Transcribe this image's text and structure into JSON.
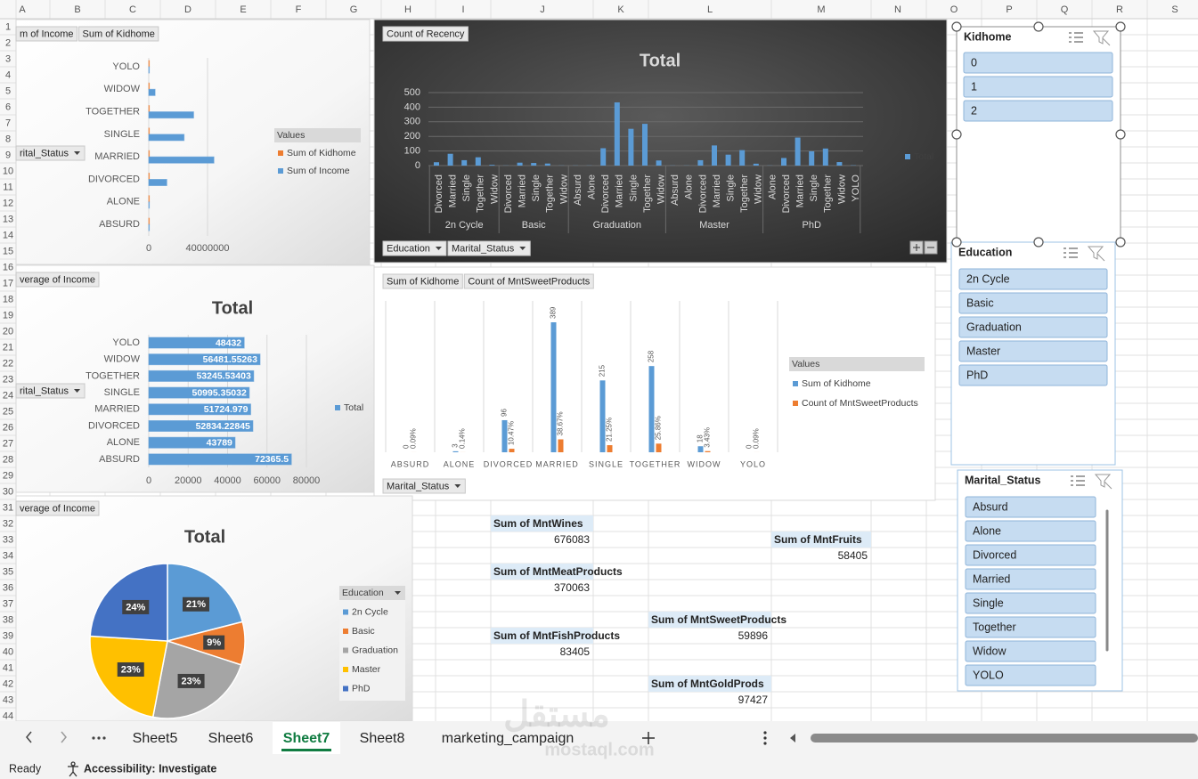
{
  "sheet": {
    "columns": [
      "A",
      "B",
      "C",
      "D",
      "E",
      "F",
      "G",
      "H",
      "I",
      "J",
      "K",
      "L",
      "M",
      "N",
      "O",
      "P",
      "Q",
      "R",
      "S"
    ],
    "rows": [
      1,
      2,
      3,
      4,
      5,
      6,
      7,
      8,
      9,
      10,
      11,
      12,
      13,
      14,
      15,
      16,
      17,
      18,
      19,
      20,
      21,
      22,
      23,
      24,
      25,
      26,
      27,
      28,
      29,
      30,
      31,
      32,
      33,
      34,
      35,
      36,
      37,
      38,
      39,
      40,
      41,
      42,
      43,
      44
    ]
  },
  "chart_data": [
    {
      "type": "bar",
      "orientation": "horizontal",
      "field_buttons": [
        "m of Income",
        "Sum of Kidhome"
      ],
      "axis_buttons": [
        "rital_Status"
      ],
      "legend_title": "Values",
      "categories": [
        "YOLO",
        "WIDOW",
        "TOGETHER",
        "SINGLE",
        "MARRIED",
        "DIVORCED",
        "ALONE",
        "ABSURD"
      ],
      "series": [
        {
          "name": "Sum of Kidhome",
          "color": "#ed7d31",
          "values": [
            0,
            18,
            258,
            215,
            389,
            96,
            3,
            0
          ]
        },
        {
          "name": "Sum of Income",
          "color": "#5b9bd5",
          "values": [
            96864,
            4292598,
            30509691,
            24018810,
            44328307,
            12257541,
            131367,
            144731
          ]
        }
      ],
      "xlim": [
        0,
        80000000
      ],
      "xticks": [
        0,
        40000000
      ],
      "grid": true
    },
    {
      "type": "bar",
      "title": "Total",
      "field_buttons": [
        "Count of Recency"
      ],
      "axis_buttons": [
        "Education",
        "Marital_Status"
      ],
      "categories": [
        {
          "name": "2n Cycle",
          "categories": [
            "Divorced",
            "Married",
            "Single",
            "Together",
            "Widow"
          ]
        },
        {
          "name": "Basic",
          "categories": [
            "Divorced",
            "Married",
            "Single",
            "Together",
            "Widow"
          ]
        },
        {
          "name": "Graduation",
          "categories": [
            "Absurd",
            "Alone",
            "Divorced",
            "Married",
            "Single",
            "Together",
            "Widow"
          ]
        },
        {
          "name": "Master",
          "categories": [
            "Absurd",
            "Alone",
            "Divorced",
            "Married",
            "Single",
            "Together",
            "Widow"
          ]
        },
        {
          "name": "PhD",
          "categories": [
            "Alone",
            "Divorced",
            "Married",
            "Single",
            "Together",
            "Widow",
            "YOLO"
          ]
        }
      ],
      "series": [
        {
          "name": "Total",
          "color": "#5b9bd5",
          "values": [
            [
              23,
              81,
              37,
              57,
              5
            ],
            [
              1,
              20,
              18,
              14,
              1
            ],
            [
              1,
              1,
              119,
              433,
              252,
              286,
              35
            ],
            [
              1,
              1,
              37,
              138,
              75,
              106,
              13
            ],
            [
              1,
              52,
              192,
              98,
              117,
              24,
              2
            ]
          ]
        }
      ],
      "ylim": [
        0,
        500
      ],
      "yticks": [
        0,
        100,
        200,
        300,
        400,
        500
      ],
      "grid": true
    },
    {
      "type": "bar",
      "orientation": "horizontal",
      "title": "Total",
      "field_buttons": [
        "verage of Income"
      ],
      "axis_buttons": [
        "rital_Status"
      ],
      "categories": [
        "YOLO",
        "WIDOW",
        "TOGETHER",
        "SINGLE",
        "MARRIED",
        "DIVORCED",
        "ALONE",
        "ABSURD"
      ],
      "series": [
        {
          "name": "Total",
          "color": "#5b9bd5",
          "values": [
            48432,
            56481.55263,
            53245.53403,
            50995.35032,
            51724.979,
            52834.22845,
            43789,
            72365.5
          ]
        }
      ],
      "data_labels": true,
      "xlim": [
        0,
        80000
      ],
      "xticks": [
        0,
        20000,
        40000,
        60000,
        80000
      ],
      "grid": true
    },
    {
      "type": "bar",
      "field_buttons": [
        "Sum of Kidhome",
        "Count of MntSweetProducts"
      ],
      "axis_buttons": [
        "Marital_Status"
      ],
      "legend_title": "Values",
      "categories": [
        "ABSURD",
        "ALONE",
        "DIVORCED",
        "MARRIED",
        "SINGLE",
        "TOGETHER",
        "WIDOW",
        "YOLO"
      ],
      "series": [
        {
          "name": "Sum of Kidhome",
          "color": "#5b9bd5",
          "values": [
            0,
            3,
            96,
            389,
            215,
            258,
            18,
            0
          ]
        },
        {
          "name": "Count of MntSweetProducts",
          "color": "#ed7d31",
          "values": [
            0.09,
            0.14,
            10.47,
            38.67,
            21.25,
            25.86,
            3.43,
            0.09
          ],
          "value_labels": [
            "0.09%",
            "0.14%",
            "10.47%",
            "38.67%",
            "21.25%",
            "25.86%",
            "3.43%",
            "0.09%"
          ]
        }
      ],
      "data_labels": true
    },
    {
      "type": "pie",
      "title": "Total",
      "field_buttons": [
        "verage of Income"
      ],
      "legend_title": "Education",
      "categories": [
        "2n Cycle",
        "Basic",
        "Graduation",
        "Master",
        "PhD"
      ],
      "values": [
        21,
        9,
        23,
        23,
        24
      ],
      "value_labels": [
        "21%",
        "9%",
        "23%",
        "23%",
        "24%"
      ],
      "colors": [
        "#5b9bd5",
        "#ed7d31",
        "#a5a5a5",
        "#ffc000",
        "#4472c4"
      ]
    }
  ],
  "cells": [
    {
      "header": "Sum of MntWines",
      "value": 676083
    },
    {
      "header": "Sum of MntFruits",
      "value": 58405
    },
    {
      "header": "Sum of MntMeatProducts",
      "value": 370063
    },
    {
      "header": "Sum of MntSweetProducts",
      "value": 59896
    },
    {
      "header": "Sum of MntFishProducts",
      "value": 83405
    },
    {
      "header": "Sum of MntGoldProds",
      "value": 97427
    }
  ],
  "slicers": [
    {
      "title": "Kidhome",
      "items": [
        0,
        1,
        2
      ]
    },
    {
      "title": "Education",
      "items": [
        "2n Cycle",
        "Basic",
        "Graduation",
        "Master",
        "PhD"
      ]
    },
    {
      "title": "Marital_Status",
      "items": [
        "Absurd",
        "Alone",
        "Divorced",
        "Married",
        "Single",
        "Together",
        "Widow",
        "YOLO"
      ]
    }
  ],
  "tabs": {
    "sheets": [
      "Sheet5",
      "Sheet6",
      "Sheet7",
      "Sheet8",
      "marketing_campaign"
    ],
    "active": 2
  },
  "status": {
    "ready": "Ready",
    "accessibility": "Accessibility: Investigate"
  },
  "watermark": {
    "arabic": "مستقل",
    "latin": "mostaql.com"
  }
}
